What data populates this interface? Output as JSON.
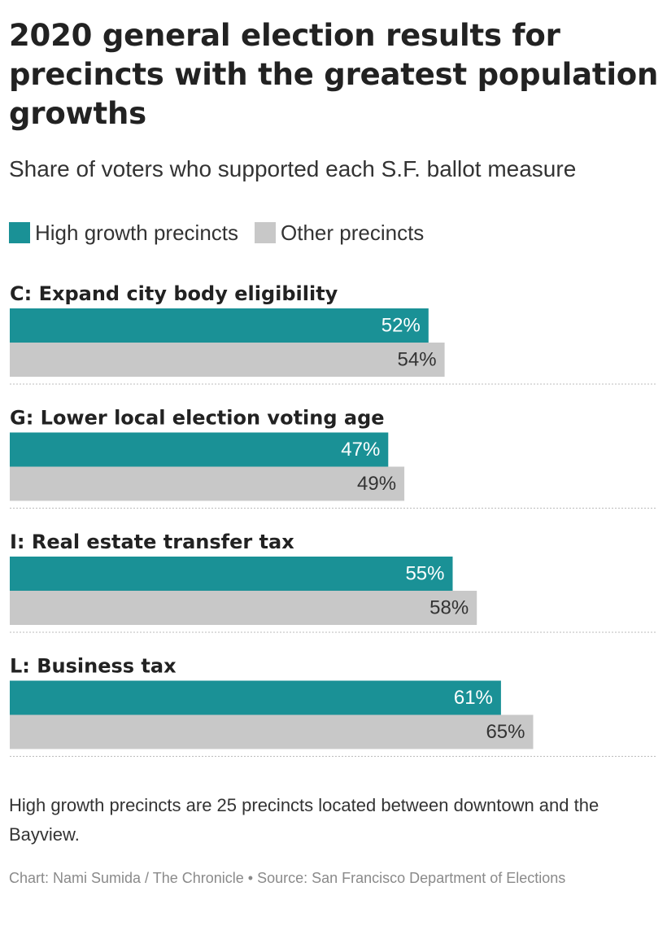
{
  "header": {
    "title": "2020 general election results for precincts with the greatest population growths",
    "subtitle": "Share of voters who supported each S.F. ballot measure"
  },
  "legend": [
    {
      "label": "High growth precincts",
      "color": "#1a9196"
    },
    {
      "label": "Other precincts",
      "color": "#c8c8c8"
    }
  ],
  "chart_data": {
    "type": "bar",
    "orientation": "horizontal",
    "categories": [
      "C: Expand city body eligibility",
      "G: Lower local election voting age",
      "I: Real estate transfer tax",
      "L: Business tax"
    ],
    "series": [
      {
        "name": "High growth precincts",
        "color": "#1a9196",
        "values": [
          52,
          47,
          55,
          61
        ],
        "labels": [
          "52%",
          "47%",
          "55%",
          "61%"
        ]
      },
      {
        "name": "Other precincts",
        "color": "#c8c8c8",
        "values": [
          54,
          49,
          58,
          65
        ],
        "labels": [
          "54%",
          "49%",
          "58%",
          "65%"
        ]
      }
    ],
    "unit": "%",
    "xlim": [
      0,
      75
    ],
    "grid": false,
    "legend_position": "top-left"
  },
  "footnote": "High growth precincts are 25 precincts located between downtown and the Bayview.",
  "credit": "Chart: Nami Sumida / The Chronicle • Source: San Francisco Department of Elections"
}
